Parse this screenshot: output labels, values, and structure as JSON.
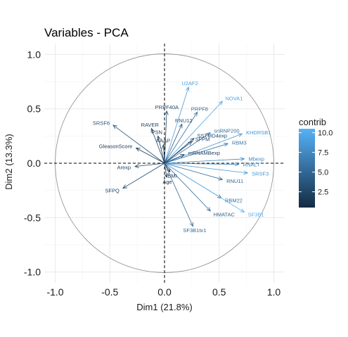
{
  "chart_data": {
    "type": "scatter",
    "subtype": "pca-variable-correlation-circle",
    "title": "Variables - PCA",
    "xlabel": "Dim1 (21.8%)",
    "ylabel": "Dim2 (13.3%)",
    "xlim": [
      -1.1,
      1.1
    ],
    "ylim": [
      -1.1,
      1.1
    ],
    "x_ticks": [
      -1.0,
      -0.5,
      0.0,
      0.5,
      1.0
    ],
    "y_ticks": [
      -1.0,
      -0.5,
      0.0,
      0.5,
      1.0
    ],
    "x_tick_labels": [
      "-1.0",
      "-0.5",
      "0.0",
      "0.5",
      "1.0"
    ],
    "y_tick_labels": [
      "-1.0",
      "-0.5",
      "0.0",
      "0.5",
      "1.0"
    ],
    "grid": true,
    "unit_circle": true,
    "legend": {
      "title": "contrib",
      "position": "right",
      "ticks": [
        10.0,
        7.5,
        5.0,
        2.5
      ],
      "tick_labels": [
        "10.0",
        "7.5",
        "5.0",
        "2.5"
      ],
      "range": [
        0.5,
        10.5
      ],
      "color_low": "#132B43",
      "color_high": "#56B1F7"
    },
    "variables": [
      {
        "name": "U2AF2",
        "x": 0.22,
        "y": 0.7,
        "contrib": 9.0
      },
      {
        "name": "NOVA1",
        "x": 0.53,
        "y": 0.57,
        "contrib": 9.5
      },
      {
        "name": "PRPF8",
        "x": 0.3,
        "y": 0.47,
        "contrib": 5.5
      },
      {
        "name": "PRPF40A",
        "x": 0.02,
        "y": 0.48,
        "contrib": 3.0
      },
      {
        "name": "SRSF6",
        "x": -0.47,
        "y": 0.35,
        "contrib": 3.5
      },
      {
        "name": "RAVER",
        "x": -0.12,
        "y": 0.32,
        "contrib": 2.5
      },
      {
        "name": "RNU12",
        "x": 0.16,
        "y": 0.36,
        "contrib": 3.5
      },
      {
        "name": "KHDRSB1",
        "x": 0.71,
        "y": 0.27,
        "contrib": 8.5
      },
      {
        "name": "snRNP200",
        "x": 0.42,
        "y": 0.28,
        "contrib": 5.5
      },
      {
        "name": "PSN",
        "x": -0.06,
        "y": 0.25,
        "contrib": 1.5
      },
      {
        "name": "SSTMD4exp",
        "x": 0.27,
        "y": 0.23,
        "contrib": 3.0
      },
      {
        "name": "RBM3",
        "x": 0.58,
        "y": 0.18,
        "contrib": 6.0
      },
      {
        "name": "SFPM",
        "x": 0.25,
        "y": 0.2,
        "contrib": 3.0
      },
      {
        "name": "GleasonScore",
        "x": -0.26,
        "y": 0.14,
        "contrib": 1.5
      },
      {
        "name": "AAAP",
        "x": -0.01,
        "y": 0.17,
        "contrib": 1.5
      },
      {
        "name": "mRNAMBexp",
        "x": 0.18,
        "y": 0.08,
        "contrib": 2.0
      },
      {
        "name": "Mbexp",
        "x": 0.73,
        "y": 0.04,
        "contrib": 7.5
      },
      {
        "name": "RNALT",
        "x": 0.68,
        "y": -0.01,
        "contrib": 7.0
      },
      {
        "name": "SRSF3",
        "x": 0.76,
        "y": -0.09,
        "contrib": 8.5
      },
      {
        "name": "RNU11",
        "x": 0.53,
        "y": -0.15,
        "contrib": 5.0
      },
      {
        "name": "Arexp",
        "x": -0.27,
        "y": -0.03,
        "contrib": 2.5
      },
      {
        "name": "BMI",
        "x": 0.05,
        "y": -0.08,
        "contrib": 0.8
      },
      {
        "name": "Age",
        "x": 0.02,
        "y": -0.13,
        "contrib": 0.8
      },
      {
        "name": "SFPQ",
        "x": -0.38,
        "y": -0.23,
        "contrib": 2.5
      },
      {
        "name": "RBM22",
        "x": 0.52,
        "y": -0.32,
        "contrib": 5.5
      },
      {
        "name": "SF3B1",
        "x": 0.73,
        "y": -0.45,
        "contrib": 10.3
      },
      {
        "name": "HMATAC",
        "x": 0.42,
        "y": -0.44,
        "contrib": 5.0
      },
      {
        "name": "SF3B1tv1",
        "x": 0.26,
        "y": -0.58,
        "contrib": 5.0
      }
    ]
  }
}
